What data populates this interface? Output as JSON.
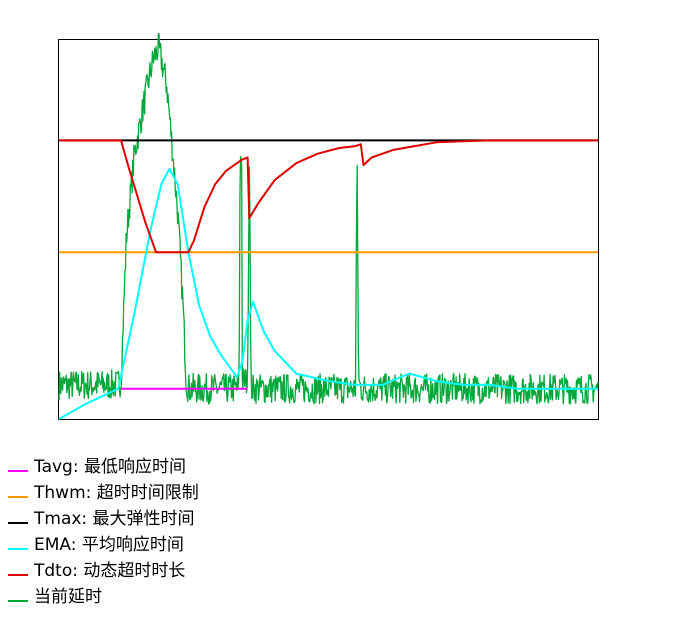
{
  "chart_data": {
    "type": "line",
    "title": "",
    "xlabel": "",
    "ylabel": "",
    "xlim": [
      0,
      100
    ],
    "ylim": [
      0,
      100
    ],
    "grid": false,
    "legend_position": "bottom-left",
    "series": [
      {
        "name": "Tavg: 最低响应时间",
        "color": "#ff00ff",
        "x": [
          11.5,
          35
        ],
        "y": [
          8,
          8
        ]
      },
      {
        "name": "Thwm: 超时时间限制",
        "color": "#ff9900",
        "x": [
          0,
          100
        ],
        "y": [
          44,
          44
        ]
      },
      {
        "name": "Tmax: 最大弹性时间",
        "color": "#000000",
        "x": [
          0,
          100
        ],
        "y": [
          73.5,
          73.5
        ]
      },
      {
        "name": "EMA: 平均响应时间",
        "color": "#00ffff",
        "x": [
          0,
          5,
          11,
          14,
          17,
          19,
          20.5,
          22,
          24,
          26,
          28,
          30,
          32,
          33,
          34,
          35,
          36,
          37,
          38,
          40,
          44,
          50,
          55,
          60,
          65,
          70,
          75,
          80,
          85,
          90,
          95,
          100
        ],
        "y": [
          0,
          4,
          8,
          28,
          50,
          62,
          66,
          62,
          44,
          30,
          22,
          17,
          13,
          11,
          15,
          26,
          31,
          27,
          23,
          18,
          12,
          10,
          9,
          9,
          12,
          10,
          9,
          9,
          8,
          8,
          8,
          8
        ]
      },
      {
        "name": "Tdto: 动态超时时长",
        "color": "#e00000",
        "x": [
          0,
          11.5,
          13,
          16,
          18,
          20,
          22,
          23,
          24,
          25,
          27,
          29,
          31,
          33,
          34,
          35,
          35.3,
          37,
          40,
          44,
          48,
          52,
          55,
          56,
          56.5,
          58,
          62,
          66,
          70,
          75,
          80,
          85,
          90,
          100
        ],
        "y": [
          73.5,
          73.5,
          66,
          52,
          44,
          44,
          44,
          44,
          44,
          47,
          56,
          62,
          65.5,
          67.5,
          68.5,
          69,
          53,
          57,
          63,
          67.5,
          70,
          71.5,
          72,
          72.5,
          67,
          69,
          71,
          72,
          73,
          73.3,
          73.5,
          73.5,
          73.5,
          73.5
        ]
      },
      {
        "name": "当前延时",
        "color": "#00a83a",
        "base": 9,
        "noise": 4,
        "x": [
          0,
          10.8,
          11.5,
          12.5,
          14,
          16,
          17.5,
          18.5,
          20,
          21,
          22,
          23,
          23.6,
          24,
          25,
          33.4,
          33.6,
          33.9,
          34,
          35,
          35.3,
          35.4,
          35.6,
          55,
          55.3,
          55.6,
          56,
          100
        ],
        "y": [
          9,
          9,
          10,
          48,
          70,
          85,
          95,
          98,
          88,
          72,
          55,
          30,
          10,
          8,
          8,
          8,
          70,
          69,
          10,
          10,
          68,
          66,
          8,
          8,
          70,
          10,
          8,
          8
        ]
      }
    ]
  }
}
